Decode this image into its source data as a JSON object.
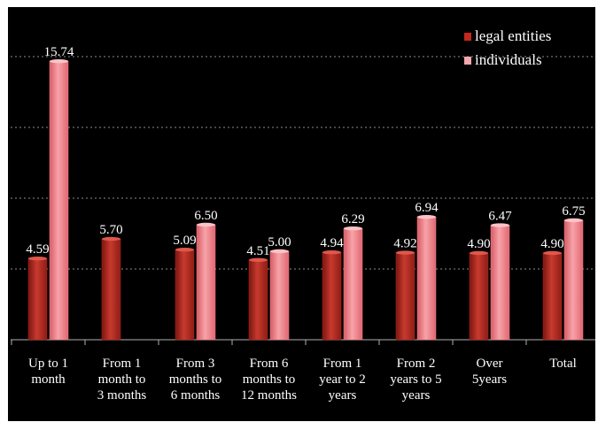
{
  "chart_data": {
    "type": "bar",
    "categories": [
      [
        "Up to 1",
        "month"
      ],
      [
        "From 1",
        "month to",
        "3 months"
      ],
      [
        "From 3",
        "months to",
        "6 months"
      ],
      [
        "From 6",
        "months to",
        "12 months"
      ],
      [
        "From 1",
        "year to 2",
        "years"
      ],
      [
        "From 2",
        "years to 5",
        "years"
      ],
      [
        "Over",
        "5years"
      ],
      [
        "Total"
      ]
    ],
    "series": [
      {
        "name": "legal entities",
        "color": "#b5291f",
        "values": [
          4.59,
          5.7,
          5.09,
          4.51,
          4.94,
          4.92,
          4.9,
          4.9
        ],
        "labels": [
          "4.59",
          "5.70",
          "5.09",
          "4.51",
          "4.94",
          "4.92",
          "4.90",
          "4.90"
        ]
      },
      {
        "name": "individuals",
        "color": "#f07f87",
        "values": [
          15.74,
          null,
          6.5,
          5.0,
          6.29,
          6.94,
          6.47,
          6.75
        ],
        "labels": [
          "15.74",
          "",
          "6.50",
          "5.00",
          "6.29",
          "6.94",
          "6.47",
          "6.75"
        ]
      }
    ],
    "ylim": [
      0,
      18
    ],
    "grid": true,
    "legend_position": "top-right",
    "title": "",
    "xlabel": "",
    "ylabel": ""
  }
}
